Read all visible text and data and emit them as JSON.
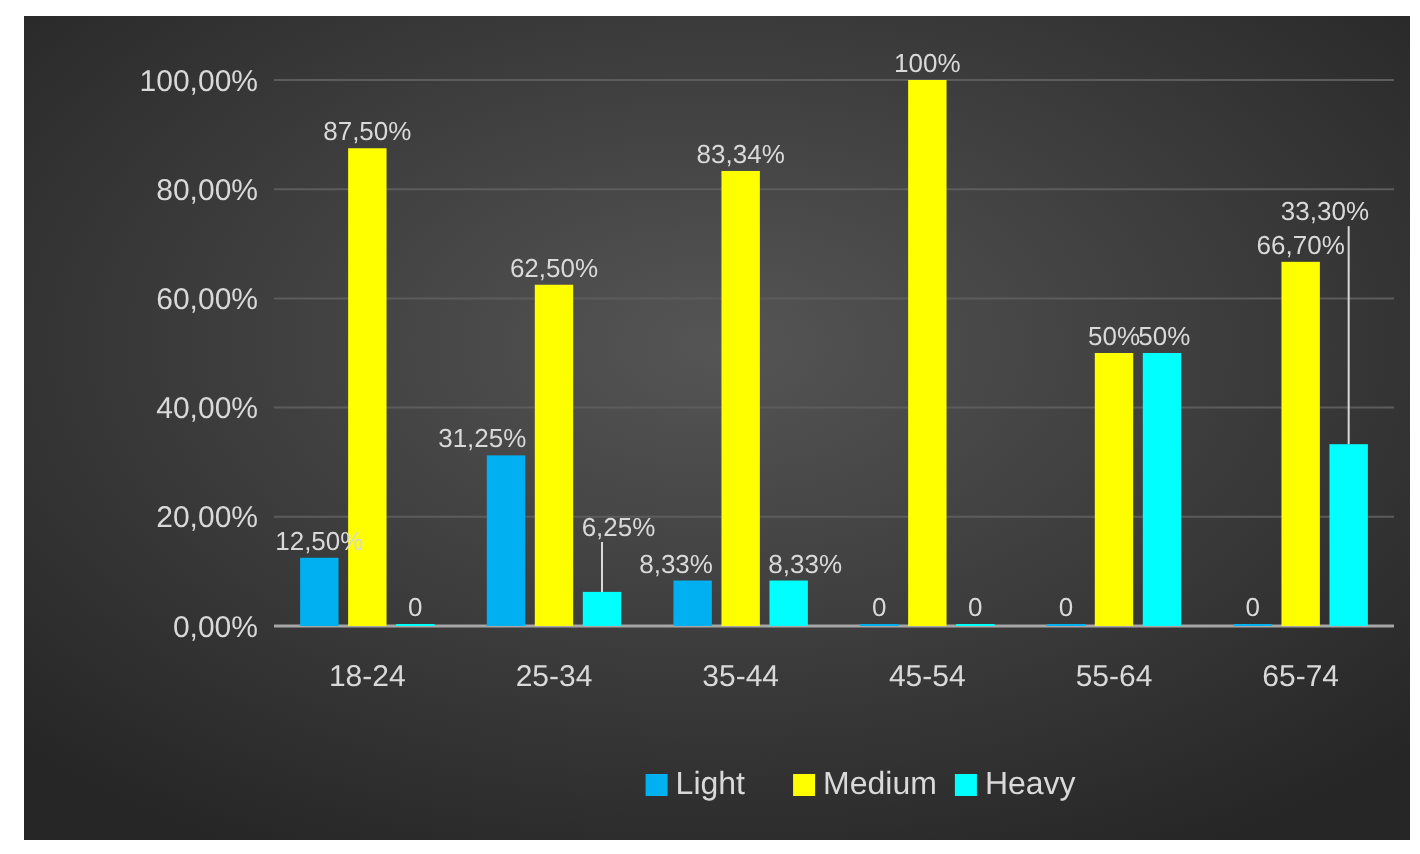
{
  "chart_data": {
    "type": "bar",
    "categories": [
      "18-24",
      "25-34",
      "35-44",
      "45-54",
      "55-64",
      "65-74"
    ],
    "series": [
      {
        "name": "Light",
        "color": "#00b0f0",
        "values": [
          12.5,
          31.25,
          8.33,
          0,
          0,
          0
        ],
        "value_labels": [
          "12,50%",
          "31,25%",
          "8,33%",
          "0",
          "0",
          "0"
        ]
      },
      {
        "name": "Medium",
        "color": "#ffff00",
        "values": [
          87.5,
          62.5,
          83.34,
          100,
          50,
          66.7
        ],
        "value_labels": [
          "87,50%",
          "62,50%",
          "83,34%",
          "100%",
          "50%",
          "66,70%"
        ]
      },
      {
        "name": "Heavy",
        "color": "#00ffff",
        "values": [
          0,
          6.25,
          8.33,
          0,
          50,
          33.3
        ],
        "value_labels": [
          "0",
          "6,25%",
          "8,33%",
          "0",
          "50%",
          "33,30%"
        ]
      }
    ],
    "ylim": [
      0,
      100
    ],
    "yticks": [
      {
        "value": 0,
        "label": "0,00%"
      },
      {
        "value": 20,
        "label": "20,00%"
      },
      {
        "value": 40,
        "label": "40,00%"
      },
      {
        "value": 60,
        "label": "60,00%"
      },
      {
        "value": 80,
        "label": "80,00%"
      },
      {
        "value": 100,
        "label": "100,00%"
      }
    ],
    "grid": "y",
    "legend": "bottom"
  }
}
